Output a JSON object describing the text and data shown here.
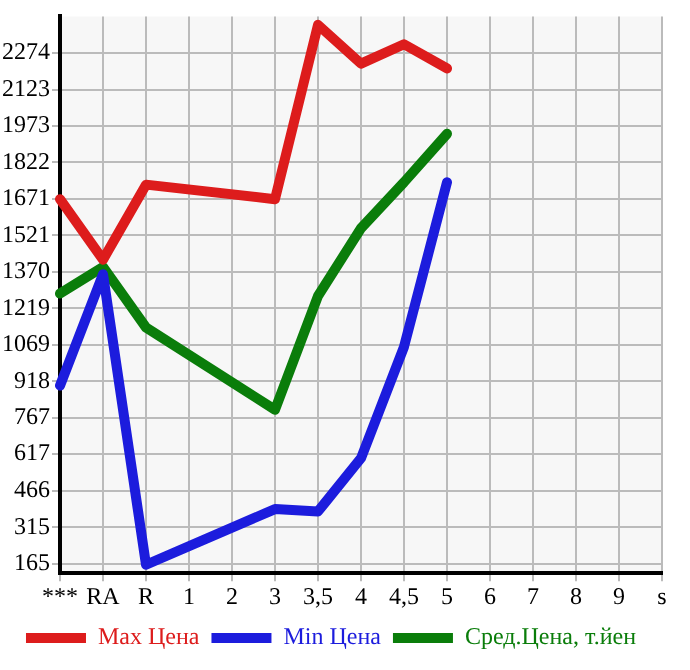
{
  "chart_data": {
    "type": "line",
    "categories": [
      "***",
      "RA",
      "R",
      "1",
      "2",
      "3",
      "3,5",
      "4",
      "4,5",
      "5",
      "6",
      "7",
      "8",
      "9",
      "s"
    ],
    "series": [
      {
        "name": "Max Цена",
        "color": "#dd1c1c",
        "values": [
          1670,
          1420,
          1730,
          null,
          null,
          1670,
          2390,
          2230,
          2310,
          2210,
          null,
          null,
          null,
          null,
          null
        ]
      },
      {
        "name": "Min Цена",
        "color": "#1c1cdd",
        "values": [
          900,
          1360,
          160,
          null,
          null,
          390,
          380,
          600,
          1060,
          1740,
          null,
          null,
          null,
          null,
          null
        ]
      },
      {
        "name": "Сред.Цена, т.йен",
        "color": "#0a7d0a",
        "values": [
          1280,
          1390,
          1140,
          null,
          null,
          800,
          1270,
          1550,
          1740,
          1940,
          null,
          null,
          null,
          null,
          null
        ]
      }
    ],
    "ylim": [
      125,
      2425
    ],
    "yticks": [
      165,
      315,
      466,
      617,
      767,
      918,
      1069,
      1219,
      1370,
      1521,
      1671,
      1822,
      1973,
      2123,
      2274
    ],
    "grid": true,
    "legend": "bottom",
    "marker": "none",
    "line_style": "solid"
  }
}
